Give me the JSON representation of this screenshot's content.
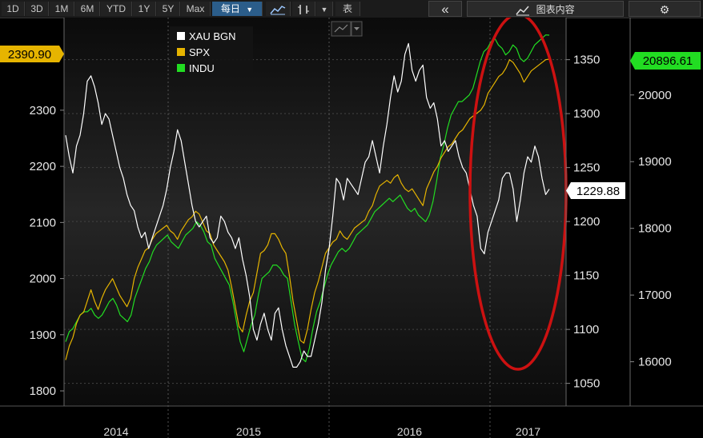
{
  "toolbar": {
    "ranges": [
      "1D",
      "3D",
      "1M",
      "6M",
      "YTD",
      "1Y",
      "5Y",
      "Max"
    ],
    "period_label": "每日",
    "table_label": "表",
    "double_left": "«",
    "chart_content_label": "图表内容"
  },
  "colors": {
    "xau": "#ffffff",
    "spx": "#e6b400",
    "indu": "#22dd22",
    "circle": "#cc1111",
    "grid": "#444444"
  },
  "chart_data": {
    "type": "line",
    "x_labels": [
      "2014",
      "2015",
      "2016",
      "2017"
    ],
    "left_axis": {
      "ticks": [
        1800,
        1900,
        2000,
        2100,
        2200,
        2300
      ],
      "range": [
        1773,
        2465
      ]
    },
    "mid_axis": {
      "ticks": [
        1050,
        1100,
        1150,
        1200,
        1250,
        1300,
        1350
      ],
      "range": [
        1029,
        1389
      ]
    },
    "right_axis": {
      "ticks": [
        16000,
        17000,
        18000,
        19000,
        20000
      ],
      "range": [
        15336,
        21160
      ]
    },
    "legend": [
      "XAU BGN",
      "SPX",
      "INDU"
    ],
    "last_values": {
      "spx": "2390.90",
      "xau": "1229.88",
      "indu": "20896.61"
    },
    "series": [
      {
        "name": "XAU BGN",
        "axis": "mid",
        "values": [
          1280,
          1260,
          1245,
          1270,
          1280,
          1300,
          1330,
          1335,
          1325,
          1310,
          1290,
          1300,
          1295,
          1280,
          1265,
          1250,
          1240,
          1225,
          1215,
          1210,
          1195,
          1185,
          1190,
          1175,
          1185,
          1195,
          1205,
          1215,
          1230,
          1250,
          1265,
          1285,
          1275,
          1255,
          1235,
          1215,
          1200,
          1195,
          1200,
          1205,
          1185,
          1180,
          1185,
          1205,
          1200,
          1190,
          1185,
          1175,
          1185,
          1165,
          1150,
          1130,
          1100,
          1090,
          1105,
          1115,
          1100,
          1090,
          1115,
          1120,
          1100,
          1085,
          1075,
          1065,
          1065,
          1070,
          1080,
          1075,
          1075,
          1090,
          1105,
          1125,
          1155,
          1175,
          1205,
          1240,
          1235,
          1220,
          1240,
          1235,
          1230,
          1225,
          1240,
          1255,
          1260,
          1275,
          1260,
          1245,
          1270,
          1290,
          1315,
          1335,
          1320,
          1330,
          1355,
          1365,
          1340,
          1330,
          1340,
          1345,
          1315,
          1305,
          1310,
          1295,
          1270,
          1275,
          1265,
          1270,
          1275,
          1260,
          1250,
          1245,
          1230,
          1215,
          1205,
          1175,
          1170,
          1190,
          1200,
          1210,
          1220,
          1240,
          1245,
          1245,
          1230,
          1200,
          1220,
          1245,
          1260,
          1255,
          1270,
          1260,
          1240,
          1225,
          1230
        ]
      },
      {
        "name": "SPX",
        "axis": "left",
        "values": [
          1855,
          1880,
          1895,
          1920,
          1935,
          1940,
          1960,
          1980,
          1960,
          1945,
          1965,
          1980,
          1990,
          2000,
          1985,
          1970,
          1960,
          1950,
          1965,
          2000,
          2020,
          2035,
          2050,
          2055,
          2070,
          2080,
          2085,
          2090,
          2095,
          2085,
          2080,
          2070,
          2085,
          2095,
          2105,
          2110,
          2120,
          2115,
          2100,
          2085,
          2080,
          2060,
          2050,
          2040,
          2030,
          2015,
          1985,
          1950,
          1915,
          1905,
          1935,
          1960,
          1975,
          2010,
          2045,
          2050,
          2060,
          2080,
          2080,
          2070,
          2055,
          2045,
          2005,
          1960,
          1925,
          1890,
          1885,
          1910,
          1945,
          1975,
          1995,
          2020,
          2045,
          2055,
          2065,
          2070,
          2085,
          2075,
          2070,
          2080,
          2090,
          2095,
          2100,
          2105,
          2120,
          2130,
          2150,
          2165,
          2170,
          2175,
          2170,
          2180,
          2185,
          2170,
          2160,
          2155,
          2160,
          2150,
          2140,
          2130,
          2160,
          2175,
          2190,
          2200,
          2215,
          2225,
          2235,
          2240,
          2250,
          2260,
          2265,
          2275,
          2285,
          2290,
          2295,
          2300,
          2310,
          2330,
          2340,
          2350,
          2360,
          2365,
          2375,
          2390,
          2385,
          2375,
          2365,
          2350,
          2360,
          2370,
          2375,
          2380,
          2385,
          2390,
          2391
        ]
      },
      {
        "name": "INDU",
        "axis": "right",
        "values": [
          16300,
          16450,
          16500,
          16600,
          16700,
          16750,
          16750,
          16800,
          16700,
          16650,
          16700,
          16800,
          16900,
          16950,
          16850,
          16700,
          16650,
          16600,
          16700,
          16950,
          17100,
          17250,
          17400,
          17500,
          17650,
          17750,
          17800,
          17850,
          17900,
          17800,
          17750,
          17700,
          17800,
          17900,
          17950,
          18000,
          18100,
          18050,
          17950,
          17800,
          17750,
          17550,
          17450,
          17350,
          17250,
          17150,
          16900,
          16600,
          16300,
          16150,
          16350,
          16550,
          16700,
          17000,
          17250,
          17300,
          17350,
          17450,
          17450,
          17400,
          17300,
          17250,
          16900,
          16550,
          16300,
          16050,
          16000,
          16200,
          16500,
          16750,
          16900,
          17100,
          17300,
          17450,
          17550,
          17650,
          17700,
          17650,
          17700,
          17800,
          17900,
          17950,
          18000,
          18050,
          18150,
          18250,
          18300,
          18350,
          18400,
          18450,
          18400,
          18450,
          18500,
          18400,
          18300,
          18250,
          18300,
          18200,
          18150,
          18100,
          18200,
          18400,
          18700,
          19050,
          19250,
          19500,
          19700,
          19800,
          19900,
          19900,
          19950,
          20000,
          20100,
          20300,
          20500,
          20650,
          20700,
          20800,
          20850,
          20750,
          20700,
          20600,
          20650,
          20750,
          20700,
          20550,
          20500,
          20550,
          20650,
          20750,
          20800,
          20850,
          20900,
          20896
        ]
      }
    ]
  }
}
